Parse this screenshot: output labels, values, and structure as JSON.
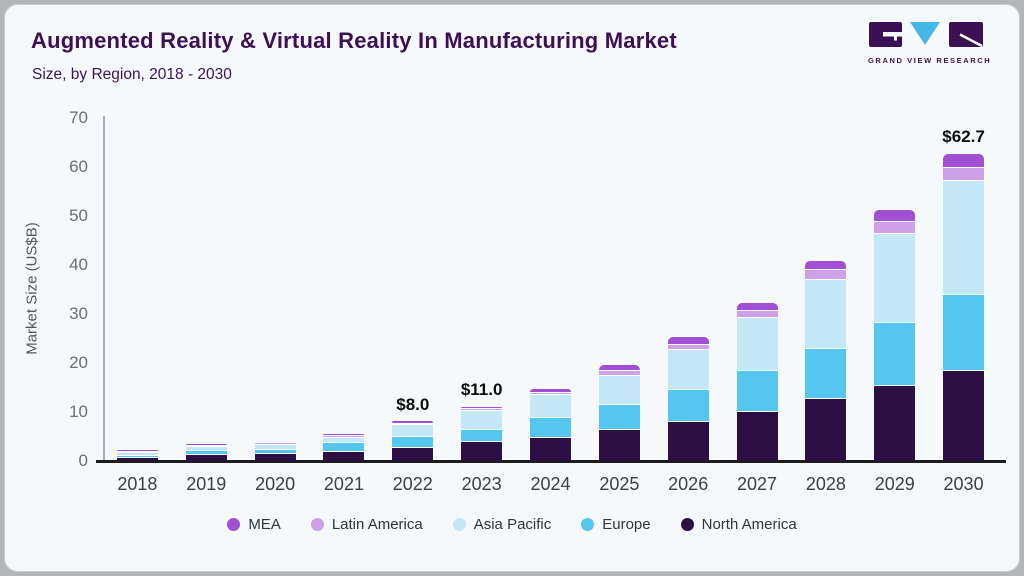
{
  "header": {
    "title": "Augmented Reality & Virtual Reality In Manufacturing Market",
    "subtitle": "Size, by Region, 2018 - 2030",
    "logo": {
      "caption": "GRAND VIEW RESEARCH"
    }
  },
  "chart_data": {
    "type": "bar",
    "stacked": true,
    "title": "Augmented Reality & Virtual Reality In Manufacturing Market Size, by Region, 2018 - 2030",
    "ylabel": "Market Size (US$B)",
    "ylim": [
      0,
      70
    ],
    "yticks": [
      0,
      10,
      20,
      30,
      40,
      50,
      60,
      70
    ],
    "grid": false,
    "legend_position": "bottom",
    "categories": [
      "2018",
      "2019",
      "2020",
      "2021",
      "2022",
      "2023",
      "2024",
      "2025",
      "2026",
      "2027",
      "2028",
      "2029",
      "2030"
    ],
    "series": [
      {
        "name": "North America",
        "color": "#2c1045",
        "values": [
          0.9,
          1.5,
          1.6,
          2.1,
          2.8,
          4.0,
          5.0,
          6.5,
          8.2,
          10.3,
          12.8,
          15.5,
          18.5
        ]
      },
      {
        "name": "Europe",
        "color": "#54c6f0",
        "values": [
          0.4,
          0.8,
          0.9,
          1.7,
          2.4,
          2.5,
          3.9,
          5.1,
          6.4,
          8.2,
          10.2,
          12.8,
          15.6
        ]
      },
      {
        "name": "Asia Pacific",
        "color": "#c4e7f8",
        "values": [
          0.5,
          0.7,
          1.0,
          1.2,
          2.3,
          3.9,
          4.7,
          6.0,
          8.2,
          10.8,
          14.2,
          18.3,
          23.2
        ]
      },
      {
        "name": "Latin America",
        "color": "#cda0e8",
        "values": [
          0.1,
          0.1,
          0.1,
          0.1,
          0.25,
          0.3,
          0.5,
          0.9,
          1.0,
          1.5,
          2.0,
          2.3,
          2.8
        ]
      },
      {
        "name": "MEA",
        "color": "#a14fd3",
        "values": [
          0.1,
          0.1,
          0.1,
          0.1,
          0.25,
          0.3,
          0.6,
          1.1,
          1.5,
          1.5,
          1.6,
          2.4,
          2.6
        ]
      }
    ],
    "totals": [
      2.0,
      3.2,
      3.7,
      5.2,
      8.0,
      11.0,
      14.7,
      19.6,
      25.3,
      32.3,
      40.8,
      51.3,
      62.7
    ],
    "legend_order": [
      "MEA",
      "Latin America",
      "Asia Pacific",
      "Europe",
      "North America"
    ],
    "annotations": [
      {
        "category": "2022",
        "label": "$8.0"
      },
      {
        "category": "2023",
        "label": "$11.0"
      },
      {
        "category": "2030",
        "label": "$62.7"
      }
    ]
  },
  "colors": {
    "card_background": "#f6f9fc",
    "outer_background": "#b3b5b6",
    "title_text": "#3c1053",
    "axis_text": "#6a6f73",
    "x_axis_line": "#1c1c1c",
    "y_axis_line": "#a8adb3",
    "logo_purple": "#3a1253",
    "logo_cyan": "#45b6e8"
  }
}
